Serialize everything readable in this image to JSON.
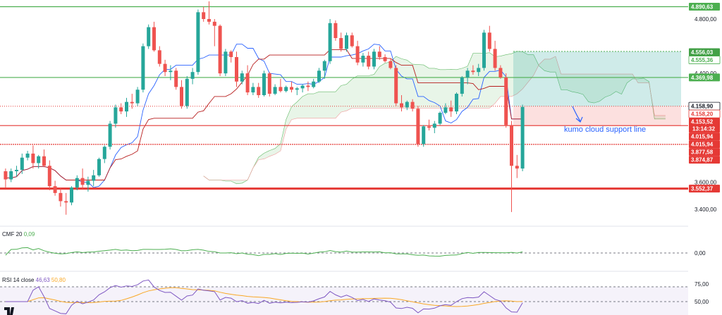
{
  "chart_data": {
    "type": "candlestick",
    "price_axis": {
      "range": [
        3330,
        4930
      ],
      "ticks": [
        "4.800,00",
        "4.400,00",
        "3.600,00",
        "3.400,00"
      ]
    },
    "candles": [
      [
        3680,
        3700,
        3560,
        3620
      ],
      [
        3620,
        3700,
        3600,
        3680
      ],
      [
        3680,
        3720,
        3640,
        3690
      ],
      [
        3690,
        3810,
        3660,
        3780
      ],
      [
        3780,
        3830,
        3760,
        3810
      ],
      [
        3810,
        3870,
        3700,
        3740
      ],
      [
        3740,
        3800,
        3700,
        3790
      ],
      [
        3790,
        3840,
        3710,
        3720
      ],
      [
        3720,
        3760,
        3540,
        3570
      ],
      [
        3570,
        3610,
        3500,
        3520
      ],
      [
        3520,
        3560,
        3420,
        3460
      ],
      [
        3460,
        3520,
        3360,
        3450
      ],
      [
        3450,
        3570,
        3430,
        3560
      ],
      [
        3560,
        3650,
        3540,
        3630
      ],
      [
        3630,
        3700,
        3550,
        3580
      ],
      [
        3580,
        3640,
        3530,
        3610
      ],
      [
        3610,
        3690,
        3570,
        3650
      ],
      [
        3650,
        3780,
        3640,
        3770
      ],
      [
        3770,
        3870,
        3740,
        3860
      ],
      [
        3860,
        4050,
        3840,
        4030
      ],
      [
        4030,
        4170,
        4000,
        4150
      ],
      [
        4150,
        4180,
        4100,
        4120
      ],
      [
        4120,
        4220,
        4080,
        4190
      ],
      [
        4190,
        4250,
        4140,
        4180
      ],
      [
        4180,
        4300,
        4160,
        4280
      ],
      [
        4280,
        4620,
        4260,
        4600
      ],
      [
        4600,
        4760,
        4580,
        4740
      ],
      [
        4740,
        4780,
        4560,
        4570
      ],
      [
        4570,
        4600,
        4450,
        4470
      ],
      [
        4470,
        4500,
        4380,
        4410
      ],
      [
        4410,
        4460,
        4350,
        4420
      ],
      [
        4420,
        4440,
        4280,
        4300
      ],
      [
        4300,
        4350,
        4140,
        4160
      ],
      [
        4160,
        4380,
        4140,
        4360
      ],
      [
        4360,
        4440,
        4320,
        4410
      ],
      [
        4410,
        4870,
        4390,
        4850
      ],
      [
        4850,
        4890,
        4780,
        4800
      ],
      [
        4800,
        4930,
        4760,
        4780
      ],
      [
        4780,
        4800,
        4600,
        4750
      ],
      [
        4750,
        4760,
        4380,
        4400
      ],
      [
        4400,
        4580,
        4380,
        4560
      ],
      [
        4560,
        4570,
        4480,
        4520
      ],
      [
        4520,
        4560,
        4300,
        4340
      ],
      [
        4340,
        4420,
        4320,
        4400
      ],
      [
        4400,
        4460,
        4240,
        4260
      ],
      [
        4260,
        4330,
        4240,
        4300
      ],
      [
        4300,
        4330,
        4220,
        4240
      ],
      [
        4240,
        4420,
        4230,
        4400
      ],
      [
        4400,
        4410,
        4230,
        4250
      ],
      [
        4250,
        4320,
        4240,
        4300
      ],
      [
        4300,
        4360,
        4260,
        4270
      ],
      [
        4270,
        4310,
        4260,
        4300
      ],
      [
        4300,
        4340,
        4260,
        4280
      ],
      [
        4280,
        4300,
        4240,
        4290
      ],
      [
        4290,
        4320,
        4260,
        4310
      ],
      [
        4310,
        4340,
        4270,
        4300
      ],
      [
        4300,
        4360,
        4290,
        4340
      ],
      [
        4340,
        4440,
        4330,
        4420
      ],
      [
        4420,
        4500,
        4360,
        4490
      ],
      [
        4490,
        4800,
        4470,
        4770
      ],
      [
        4770,
        4790,
        4640,
        4660
      ],
      [
        4660,
        4700,
        4560,
        4580
      ],
      [
        4580,
        4700,
        4560,
        4680
      ],
      [
        4680,
        4700,
        4590,
        4600
      ],
      [
        4600,
        4640,
        4460,
        4480
      ],
      [
        4480,
        4550,
        4450,
        4530
      ],
      [
        4530,
        4560,
        4430,
        4450
      ],
      [
        4450,
        4580,
        4430,
        4560
      ],
      [
        4560,
        4600,
        4500,
        4520
      ],
      [
        4520,
        4540,
        4480,
        4490
      ],
      [
        4490,
        4510,
        4430,
        4440
      ],
      [
        4440,
        4460,
        4160,
        4180
      ],
      [
        4180,
        4240,
        4120,
        4150
      ],
      [
        4150,
        4200,
        4130,
        4190
      ],
      [
        4190,
        4210,
        4120,
        4140
      ],
      [
        4140,
        4160,
        3860,
        3880
      ],
      [
        3880,
        4020,
        3860,
        4010
      ],
      [
        4010,
        4060,
        3980,
        4000
      ],
      [
        4000,
        4050,
        3960,
        4030
      ],
      [
        4030,
        4120,
        4020,
        4110
      ],
      [
        4110,
        4180,
        4100,
        4150
      ],
      [
        4150,
        4200,
        4080,
        4120
      ],
      [
        4120,
        4260,
        4100,
        4250
      ],
      [
        4250,
        4380,
        4230,
        4370
      ],
      [
        4370,
        4440,
        4320,
        4420
      ],
      [
        4420,
        4460,
        4390,
        4410
      ],
      [
        4410,
        4470,
        4380,
        4440
      ],
      [
        4440,
        4720,
        4420,
        4700
      ],
      [
        4700,
        4750,
        4560,
        4580
      ],
      [
        4580,
        4640,
        4420,
        4440
      ],
      [
        4440,
        4460,
        4360,
        4370
      ],
      [
        4370,
        4400,
        4000,
        4020
      ],
      [
        4020,
        4050,
        3380,
        3720
      ],
      [
        3720,
        3800,
        3630,
        3700
      ],
      [
        3700,
        4170,
        3680,
        4153.52
      ]
    ],
    "price_lines": [
      {
        "value": 4890.63,
        "label": "4.890,63",
        "color": "#4caf50",
        "width": 1.2
      },
      {
        "value": 4369.98,
        "label": "4.369,98",
        "color": "#4caf50",
        "width": 1.2
      },
      {
        "value": 4015.94,
        "label": "4.015,94",
        "color": "#e53935",
        "width": 1.2
      },
      {
        "value": 3877.58,
        "label": "3.877,58",
        "color": "#e53935",
        "width": 1.2,
        "dashed": true
      },
      {
        "value": 3552.37,
        "label": "3.552,37",
        "color": "#e53935",
        "width": 3
      }
    ],
    "price_tags": [
      {
        "value": 4890.63,
        "label": "4.890,63",
        "bg": "#4caf50",
        "fg": "#ffffff"
      },
      {
        "value": 4556.03,
        "label": "4.556,03",
        "bg": "#43a047",
        "fg": "#ffffff"
      },
      {
        "value": 4555.36,
        "label": "4.555,36",
        "bg": "#ffffff",
        "fg": "#4caf50",
        "border": "#4caf50"
      },
      {
        "value": 4369.98,
        "label": "4.369,98",
        "bg": "#4caf50",
        "fg": "#ffffff"
      },
      {
        "value": 4158.9,
        "label": "4.158,90",
        "bg": "#ffffff",
        "fg": "#131722",
        "border": "#131722"
      },
      {
        "value": 4158.2,
        "label": "4.158,20",
        "bg": "#ffffff",
        "fg": "#e53935",
        "border": "#e53935"
      },
      {
        "value": 4153.52,
        "label": "4.153,52",
        "bg": "#e53935",
        "fg": "#ffffff",
        "sub": "13:14:32"
      },
      {
        "value": 4015.94,
        "label": "4.015,94",
        "bg": "#e53935",
        "fg": "#ffffff"
      },
      {
        "value": 4015.94,
        "label": "4.015,94",
        "bg": "#e53935",
        "fg": "#ffffff"
      },
      {
        "value": 3877.58,
        "label": "3.877,58",
        "bg": "#e53935",
        "fg": "#ffffff"
      },
      {
        "value": 3874.87,
        "label": "3.874,87",
        "bg": "#e53935",
        "fg": "#ffffff"
      },
      {
        "value": 3552.37,
        "label": "3.552,37",
        "bg": "#e53935",
        "fg": "#ffffff"
      }
    ],
    "annotation": "kumo cloud support line",
    "indicators": {
      "cmf": {
        "name": "CMF",
        "period": "20",
        "value": "0,09",
        "ticks": [
          "0,00"
        ]
      },
      "rsi": {
        "name": "RSI",
        "period": "14",
        "source": "close",
        "value": "46,63",
        "ma_value": "50,80",
        "ticks": [
          "75,00",
          "50,00"
        ]
      }
    },
    "colors": {
      "up": "#26a69a",
      "down": "#ef5350",
      "tenkan": "#2962ff",
      "kijun": "#b71c1c",
      "cloud": "#4caf50"
    }
  }
}
